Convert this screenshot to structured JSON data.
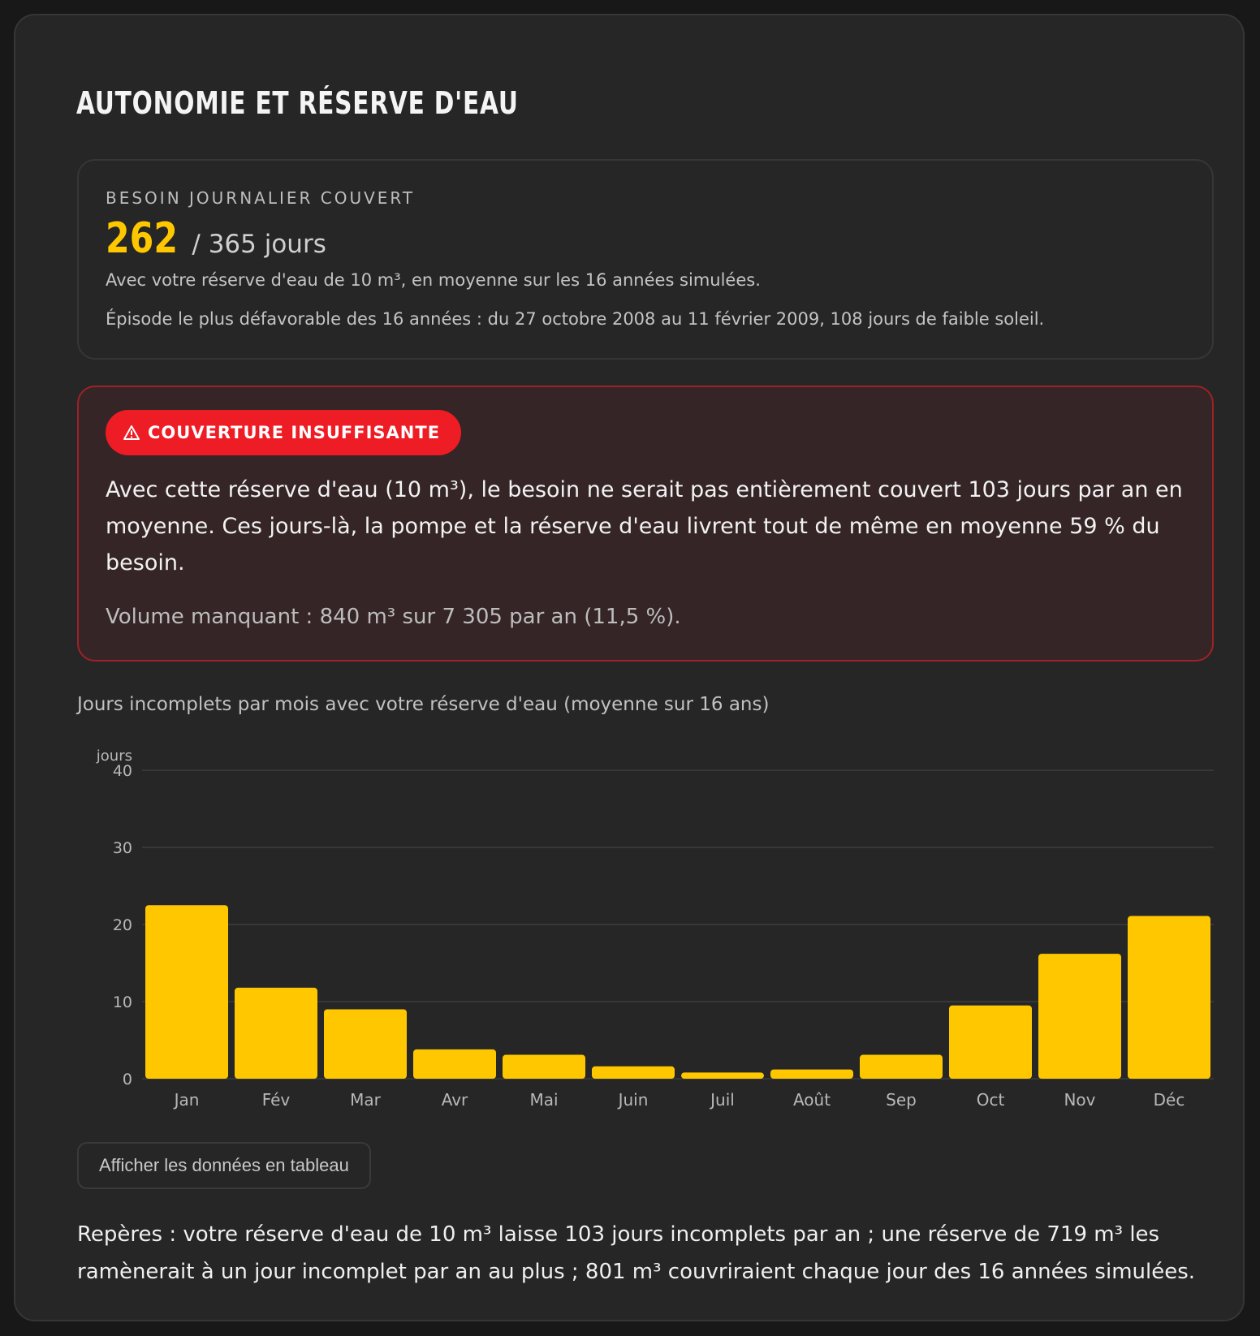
{
  "title": "AUTONOMIE ET RÉSERVE D'EAU",
  "summary": {
    "label": "BESOIN JOURNALIER COUVERT",
    "value": "262",
    "total": " / 365 jours",
    "note1": "Avec votre réserve d'eau de 10 m³, en moyenne sur les 16 années simulées.",
    "note2": "Épisode le plus défavorable des 16 années : du 27 octobre 2008 au 11 février 2009, 108 jours de faible soleil."
  },
  "alert": {
    "badge": "COUVERTURE INSUFFISANTE",
    "text": "Avec cette réserve d'eau (10 m³), le besoin ne serait pas entièrement couvert 103 jours par an en moyenne. Ces jours-là, la pompe et la réserve d'eau livrent tout de même en moyenne 59 % du besoin.",
    "sub": "Volume manquant : 840 m³ sur 7 305 par an (11,5 %)."
  },
  "colors": {
    "accent": "#ffc700",
    "danger": "#ee1c24",
    "danger_border": "#9e2227",
    "background": "#262626"
  },
  "chart_data": {
    "type": "bar",
    "title": "Jours incomplets par mois avec votre réserve d'eau (moyenne sur 16 ans)",
    "ylabel": "jours",
    "xlabel": "",
    "categories": [
      "Jan",
      "Fév",
      "Mar",
      "Avr",
      "Mai",
      "Juin",
      "Juil",
      "Août",
      "Sep",
      "Oct",
      "Nov",
      "Déc"
    ],
    "values": [
      22.5,
      11.8,
      9.0,
      3.8,
      3.1,
      1.6,
      0.8,
      1.2,
      3.1,
      9.5,
      16.2,
      21.1
    ],
    "ylim": [
      0,
      40
    ],
    "yticks": [
      0,
      10,
      20,
      30,
      40
    ],
    "grid": true,
    "legend": "none"
  },
  "table_button": "Afficher les données en tableau",
  "footer": "Repères : votre réserve d'eau de 10 m³ laisse 103 jours incomplets par an ; une réserve de 719 m³ les ramènerait à un jour incomplet par an au plus ; 801 m³ couvriraient chaque jour des 16 années simulées."
}
